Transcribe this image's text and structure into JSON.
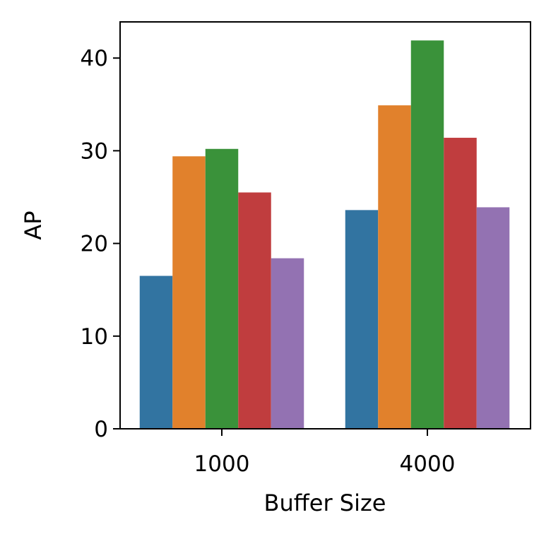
{
  "chart_data": {
    "type": "bar",
    "xlabel": "Buffer Size",
    "ylabel": "AP",
    "categories": [
      "1000",
      "4000"
    ],
    "ylim": [
      0,
      44
    ],
    "yticks": [
      0,
      10,
      20,
      30,
      40
    ],
    "grid": false,
    "series": [
      {
        "color": "#3274a1",
        "values": [
          16.5,
          23.6
        ]
      },
      {
        "color": "#e1812c",
        "values": [
          29.4,
          34.9
        ]
      },
      {
        "color": "#3a923a",
        "values": [
          30.2,
          41.9
        ]
      },
      {
        "color": "#c03d3e",
        "values": [
          25.5,
          31.4
        ]
      },
      {
        "color": "#9372b2",
        "values": [
          18.4,
          23.9
        ]
      }
    ]
  }
}
